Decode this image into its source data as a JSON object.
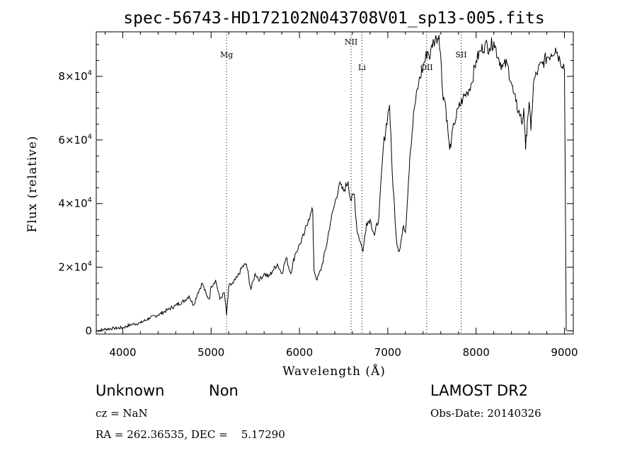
{
  "chart_data": {
    "type": "line",
    "title": "spec-56743-HD172102N043708V01_sp13-005.fits",
    "xlabel": "Wavelength (Å)",
    "ylabel": "Flux (relative)",
    "xlim": [
      3700,
      9100
    ],
    "ylim": [
      -1000,
      94000
    ],
    "x_ticks": [
      4000,
      5000,
      6000,
      7000,
      8000,
      9000
    ],
    "y_ticks": [
      {
        "value": 0,
        "label": "0"
      },
      {
        "value": 20000,
        "mantissa": "2",
        "times": "×10",
        "exp": "4"
      },
      {
        "value": 40000,
        "mantissa": "4",
        "times": "×10",
        "exp": "4"
      },
      {
        "value": 60000,
        "mantissa": "6",
        "times": "×10",
        "exp": "4"
      },
      {
        "value": 80000,
        "mantissa": "8",
        "times": "×10",
        "exp": "4"
      }
    ],
    "spectral_lines": [
      {
        "name": "Mg",
        "wavelength": 5175,
        "label_flux": 86000
      },
      {
        "name": "NII",
        "wavelength": 6585,
        "label_flux": 90000
      },
      {
        "name": "Li",
        "wavelength": 6708,
        "label_flux": 82000
      },
      {
        "name": "OII",
        "wavelength": 7440,
        "label_flux": 82000
      },
      {
        "name": "SII",
        "wavelength": 7830,
        "label_flux": 86000
      }
    ],
    "series": [
      {
        "x": [
          3700,
          3800,
          3900,
          4000,
          4100,
          4200,
          4300,
          4400,
          4500,
          4600,
          4700,
          4750,
          4800,
          4850,
          4900,
          4950,
          4980,
          5000,
          5050,
          5100,
          5150,
          5175,
          5200,
          5250,
          5300,
          5350,
          5400,
          5450,
          5480,
          5500,
          5550,
          5600,
          5650,
          5700,
          5750,
          5800,
          5850,
          5900,
          5950,
          6000,
          6050,
          6100,
          6150,
          6165,
          6200,
          6250,
          6300,
          6350,
          6400,
          6450,
          6500,
          6550,
          6580,
          6620,
          6650,
          6700,
          6720,
          6760,
          6800,
          6850,
          6900,
          6950,
          7000,
          7020,
          7050,
          7100,
          7130,
          7180,
          7200,
          7250,
          7300,
          7350,
          7400,
          7450,
          7480,
          7500,
          7520,
          7550,
          7580,
          7600,
          7620,
          7650,
          7680,
          7700,
          7720,
          7750,
          7800,
          7850,
          7900,
          7950,
          8000,
          8050,
          8100,
          8150,
          8200,
          8250,
          8300,
          8350,
          8400,
          8420,
          8450,
          8480,
          8500,
          8520,
          8540,
          8560,
          8580,
          8600,
          8620,
          8650,
          8700,
          8750,
          8800,
          8850,
          8900,
          8950,
          8990,
          9000,
          9020
        ],
        "y": [
          0,
          500,
          800,
          1000,
          2000,
          2500,
          4000,
          5000,
          6500,
          8000,
          9500,
          11000,
          8000,
          12000,
          15000,
          11000,
          10000,
          14000,
          16000,
          10000,
          12000,
          5000,
          14000,
          15000,
          17000,
          20000,
          21000,
          13000,
          16000,
          18000,
          16000,
          18000,
          17000,
          19000,
          21000,
          18000,
          23000,
          18000,
          24000,
          27000,
          30000,
          35000,
          38000,
          19000,
          16000,
          20000,
          26000,
          34000,
          40000,
          46000,
          44000,
          47000,
          41000,
          43000,
          32000,
          27000,
          25000,
          34000,
          35000,
          30000,
          36000,
          58000,
          68000,
          71000,
          50000,
          28000,
          25000,
          33000,
          31000,
          55000,
          70000,
          78000,
          83000,
          88000,
          86000,
          90000,
          91000,
          92000,
          93000,
          86000,
          75000,
          72000,
          63000,
          57000,
          60000,
          65000,
          70000,
          73000,
          75000,
          78000,
          85000,
          88000,
          90000,
          89000,
          91000,
          86000,
          83000,
          84000,
          78000,
          75000,
          72000,
          69000,
          68000,
          65000,
          70000,
          57000,
          66000,
          72000,
          63000,
          78000,
          82000,
          84000,
          86000,
          87000,
          89000,
          85000,
          84000,
          82000,
          0
        ]
      }
    ]
  },
  "info": {
    "class": "Unknown",
    "subclass": "Non",
    "cz": "cz = NaN",
    "radec": "RA = 262.36535, DEC =    5.17290",
    "survey": "LAMOST DR2",
    "obs_date": "Obs-Date: 20140326"
  }
}
